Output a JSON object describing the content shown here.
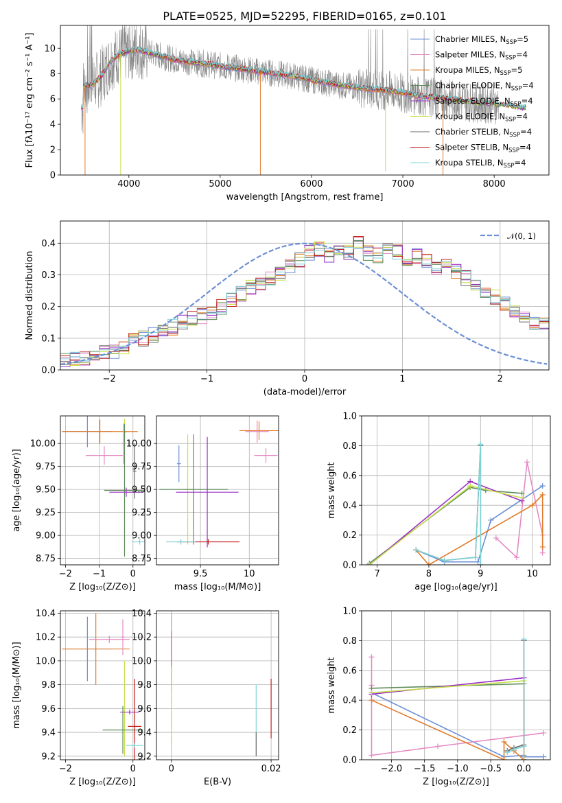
{
  "figure_title": "PLATE=0525, MJD=52295, FIBERID=0165, z=0.101",
  "colors": {
    "Chabrier MILES": "#6b8fd6",
    "Salpeter MILES": "#e48ac3",
    "Kroupa MILES": "#e07b2a",
    "Chabrier ELODIE": "#5e8c5a",
    "Salpeter ELODIE": "#9b30c4",
    "Kroupa ELODIE": "#c8de4a",
    "Chabrier STELIB": "#6a6a6a",
    "Salpeter STELIB": "#c21f1f",
    "Kroupa STELIB": "#7fd3d6",
    "gaussian": "#6b8fd6",
    "data": "#888888"
  },
  "chart_data": [
    {
      "type": "line",
      "title": "PLATE=0525, MJD=52295, FIBERID=0165, z=0.101",
      "xlabel": "wavelength [Angstrom, rest frame]",
      "ylabel": "Flux [fλ10⁻¹⁷ erg cm⁻² s⁻¹ A⁻¹]",
      "xlim": [
        3250,
        8600
      ],
      "ylim": [
        0,
        11.8
      ],
      "xticks": [
        4000,
        5000,
        6000,
        7000,
        8000
      ],
      "yticks": [
        0,
        2,
        4,
        6,
        8,
        10
      ],
      "grid": false,
      "legend_position": "top-right",
      "legend": [
        "Chabrier MILES, N_SSP=5",
        "Salpeter MILES, N_SSP=4",
        "Kroupa MILES, N_SSP=5",
        "Chabrier ELODIE, N_SSP=4",
        "Salpeter ELODIE, N_SSP=4",
        "Kroupa ELODIE, N_SSP=4",
        "Chabrier STELIB, N_SSP=4",
        "Salpeter STELIB, N_SSP=4",
        "Kroupa STELIB, N_SSP=4"
      ],
      "model_continuum": {
        "x": [
          3500,
          3600,
          3700,
          3800,
          3900,
          4000,
          4100,
          4200,
          4300,
          4400,
          4500,
          4700,
          5000,
          5200,
          5500,
          5800,
          6000,
          6300,
          6500,
          6800,
          7000,
          7200,
          7500,
          7800,
          8000,
          8300
        ],
        "y": [
          7.0,
          7.1,
          7.8,
          9.0,
          9.5,
          9.8,
          9.9,
          9.7,
          9.5,
          9.3,
          9.1,
          8.9,
          8.6,
          8.4,
          8.1,
          7.8,
          7.5,
          7.1,
          6.9,
          6.7,
          6.5,
          6.2,
          6.0,
          5.7,
          5.6,
          5.3
        ]
      }
    },
    {
      "type": "step",
      "xlabel": "(data-model)/error",
      "ylabel": "Normed distribution",
      "xlim": [
        -2.5,
        2.5
      ],
      "ylim": [
        0,
        0.47
      ],
      "xticks": [
        -2,
        -1,
        0,
        1,
        2
      ],
      "yticks": [
        0.0,
        0.1,
        0.2,
        0.3,
        0.4
      ],
      "grid": true,
      "legend_position": "top-right",
      "legend": [
        "𝒩(0, 1)"
      ],
      "bin_width": 0.1,
      "bin_start": -2.5,
      "histogram_mean": [
        0.03,
        0.035,
        0.04,
        0.05,
        0.055,
        0.06,
        0.075,
        0.09,
        0.1,
        0.11,
        0.12,
        0.135,
        0.15,
        0.16,
        0.17,
        0.18,
        0.2,
        0.22,
        0.24,
        0.26,
        0.27,
        0.29,
        0.3,
        0.33,
        0.35,
        0.37,
        0.38,
        0.36,
        0.38,
        0.37,
        0.4,
        0.37,
        0.36,
        0.38,
        0.37,
        0.35,
        0.36,
        0.34,
        0.32,
        0.33,
        0.31,
        0.29,
        0.27,
        0.25,
        0.23,
        0.21,
        0.19,
        0.16,
        0.15,
        0.14,
        0.12,
        0.11,
        0.1,
        0.09,
        0.08,
        0.07,
        0.06,
        0.05,
        0.045,
        0.04,
        0.04
      ]
    },
    {
      "type": "errorbar",
      "xlabel": "Z [log₁₀(Z/Z⊙)]",
      "ylabel": "age  [log₁₀(age/yr)]",
      "xlim": [
        -2.15,
        0.35
      ],
      "ylim": [
        8.68,
        10.3
      ],
      "xticks": [
        -2,
        -1,
        0
      ],
      "yticks": [
        8.75,
        9.0,
        9.25,
        9.5,
        9.75,
        10.0
      ],
      "grid": true,
      "points": [
        {
          "m": "Chabrier MILES",
          "x": -1.35,
          "y": 10.13,
          "xerr": 0.75,
          "yerr": 0.17
        },
        {
          "m": "Kroupa MILES",
          "x": -0.98,
          "y": 10.13,
          "xerr": 1.12,
          "yerr": 0.13
        },
        {
          "m": "Salpeter MILES",
          "x": -0.85,
          "y": 9.87,
          "xerr": 0.55,
          "yerr": 0.1
        },
        {
          "m": "Salpeter MILES",
          "x": -0.28,
          "y": 10.0,
          "xerr": 0.05,
          "yerr": 0.22
        },
        {
          "m": "Kroupa ELODIE",
          "x": -0.25,
          "y": 10.12,
          "xerr": 0.05,
          "yerr": 0.15
        },
        {
          "m": "Chabrier ELODIE",
          "x": -0.25,
          "y": 9.49,
          "xerr": 0.6,
          "yerr": 0.72
        },
        {
          "m": "Salpeter ELODIE",
          "x": -0.2,
          "y": 9.47,
          "xerr": 0.5,
          "yerr": 0.05
        },
        {
          "m": "Chabrier STELIB",
          "x": 0.05,
          "y": 9.7,
          "xerr": 0.05,
          "yerr": 0.3
        },
        {
          "m": "Kroupa STELIB",
          "x": 0.2,
          "y": 8.93,
          "xerr": 0.22,
          "yerr": 0.03
        }
      ]
    },
    {
      "type": "errorbar",
      "xlabel": "mass [log₁₀(M/M⊙)]",
      "ylabel": "",
      "xlim": [
        9.05,
        10.3
      ],
      "ylim": [
        8.68,
        10.3
      ],
      "xticks": [
        9.5,
        10.0
      ],
      "yticks": [
        8.75,
        9.0,
        9.25,
        9.5,
        9.75,
        10.0
      ],
      "grid": true,
      "points": [
        {
          "m": "Salpeter MILES",
          "x": 10.17,
          "y": 9.87,
          "xerr": 0.12,
          "yerr": 0.08
        },
        {
          "m": "Kroupa MILES",
          "x": 10.1,
          "y": 10.14,
          "xerr": 0.2,
          "yerr": 0.1
        },
        {
          "m": "Salpeter MILES",
          "x": 10.08,
          "y": 10.13,
          "xerr": 0.12,
          "yerr": 0.12
        },
        {
          "m": "Chabrier MILES",
          "x": 9.28,
          "y": 9.78,
          "xerr": 0.02,
          "yerr": 0.2
        },
        {
          "m": "Kroupa ELODIE",
          "x": 9.37,
          "y": 9.5,
          "xerr": 0.05,
          "yerr": 0.6
        },
        {
          "m": "Chabrier ELODIE",
          "x": 9.43,
          "y": 9.5,
          "xerr": 0.35,
          "yerr": 0.6
        },
        {
          "m": "Salpeter ELODIE",
          "x": 9.57,
          "y": 9.47,
          "xerr": 0.32,
          "yerr": 0.6
        },
        {
          "m": "Salpeter STELIB",
          "x": 9.58,
          "y": 8.93,
          "xerr": 0.32,
          "yerr": 0.03
        },
        {
          "m": "Kroupa STELIB",
          "x": 9.3,
          "y": 8.93,
          "xerr": 0.15,
          "yerr": 0.03
        }
      ]
    },
    {
      "type": "line",
      "xlabel": "age  [log₁₀(age/yr)]",
      "ylabel": "mass weight",
      "xlim": [
        6.7,
        10.35
      ],
      "ylim": [
        0,
        1.0
      ],
      "xticks": [
        7,
        8,
        9,
        10
      ],
      "yticks": [
        0.0,
        0.2,
        0.4,
        0.6,
        0.8,
        1.0
      ],
      "grid": true,
      "series": [
        {
          "m": "Chabrier MILES",
          "x": [
            7.75,
            8.3,
            8.95,
            9.2,
            10.2
          ],
          "y": [
            0.1,
            0.02,
            0.02,
            0.3,
            0.53
          ]
        },
        {
          "m": "Salpeter MILES",
          "x": [
            9.3,
            9.7,
            9.9,
            10.2,
            10.2
          ],
          "y": [
            0.18,
            0.05,
            0.69,
            0.2,
            0.08
          ]
        },
        {
          "m": "Kroupa MILES",
          "x": [
            7.75,
            8.0,
            10.0,
            10.2,
            10.2
          ],
          "y": [
            0.1,
            0.0,
            0.4,
            0.47,
            0.12
          ]
        },
        {
          "m": "Chabrier ELODIE",
          "x": [
            6.85,
            8.8,
            9.1,
            9.8
          ],
          "y": [
            0.01,
            0.52,
            0.5,
            0.48
          ]
        },
        {
          "m": "Salpeter ELODIE",
          "x": [
            6.85,
            8.8,
            9.8
          ],
          "y": [
            0.0,
            0.56,
            0.43
          ]
        },
        {
          "m": "Kroupa ELODIE",
          "x": [
            6.85,
            8.8,
            9.8
          ],
          "y": [
            0.0,
            0.53,
            0.45
          ]
        },
        {
          "m": "Chabrier STELIB",
          "x": [
            7.75,
            8.3,
            8.9,
            9.0,
            9.0
          ],
          "y": [
            0.1,
            0.03,
            0.05,
            0.8,
            0.0
          ]
        },
        {
          "m": "Kroupa STELIB",
          "x": [
            7.75,
            8.3,
            8.9,
            9.0,
            9.0
          ],
          "y": [
            0.1,
            0.03,
            0.05,
            0.81,
            0.0
          ]
        }
      ]
    },
    {
      "type": "errorbar",
      "xlabel": "Z [log₁₀(Z/Z⊙)]",
      "ylabel": "mass [log₁₀(M/M⊙)]",
      "xlim": [
        -2.15,
        0.35
      ],
      "ylim": [
        9.17,
        10.42
      ],
      "xticks": [
        -2,
        0
      ],
      "yticks": [
        9.2,
        9.4,
        9.6,
        9.8,
        10.0,
        10.2,
        10.4
      ],
      "grid": true,
      "points": [
        {
          "m": "Chabrier MILES",
          "x": -1.35,
          "y": 10.1,
          "xerr": 0.75,
          "yerr": 0.27
        },
        {
          "m": "Kroupa MILES",
          "x": -1.1,
          "y": 10.1,
          "xerr": 1.0,
          "yerr": 0.3
        },
        {
          "m": "Salpeter MILES",
          "x": -0.7,
          "y": 10.18,
          "xerr": 0.6,
          "yerr": 0.03
        },
        {
          "m": "Salpeter MILES",
          "x": -0.3,
          "y": 10.2,
          "xerr": 0.05,
          "yerr": 0.15
        },
        {
          "m": "Kroupa ELODIE",
          "x": -0.25,
          "y": 9.6,
          "xerr": 0.05,
          "yerr": 0.4
        },
        {
          "m": "Chabrier ELODIE",
          "x": -0.3,
          "y": 9.42,
          "xerr": 0.6,
          "yerr": 0.2
        },
        {
          "m": "Salpeter ELODIE",
          "x": -0.1,
          "y": 9.57,
          "xerr": 0.28,
          "yerr": 0.02
        },
        {
          "m": "Salpeter STELIB",
          "x": 0.05,
          "y": 9.45,
          "xerr": 0.2,
          "yerr": 0.4
        },
        {
          "m": "Kroupa STELIB",
          "x": 0.05,
          "y": 9.29,
          "xerr": 0.25,
          "yerr": 0.02
        }
      ]
    },
    {
      "type": "errorbar",
      "xlabel": "E(B-V)",
      "ylabel": "",
      "xlim": [
        -0.003,
        0.0215
      ],
      "ylim": [
        9.17,
        10.42
      ],
      "xticks": [
        0.0,
        0.02
      ],
      "yticks": [
        9.2,
        9.4,
        9.6,
        9.8,
        10.0,
        10.2,
        10.4
      ],
      "grid": true,
      "points": [
        {
          "m": "Salpeter MILES",
          "x": 0.0,
          "y": 10.1,
          "xerr": 0,
          "yerr": 0.3
        },
        {
          "m": "Kroupa MILES",
          "x": 0.0,
          "y": 10.0,
          "xerr": 0,
          "yerr": 0.25
        },
        {
          "m": "Kroupa ELODIE",
          "x": 0.0,
          "y": 9.6,
          "xerr": 0,
          "yerr": 0.35
        },
        {
          "m": "Kroupa STELIB",
          "x": 0.017,
          "y": 9.5,
          "xerr": 0,
          "yerr": 0.3
        },
        {
          "m": "Chabrier STELIB",
          "x": 0.017,
          "y": 9.3,
          "xerr": 0,
          "yerr": 0.1
        },
        {
          "m": "Salpeter STELIB",
          "x": 0.02,
          "y": 9.6,
          "xerr": 0,
          "yerr": 0.25
        }
      ]
    },
    {
      "type": "line",
      "xlabel": "Z [log₁₀(Z/Z⊙)]",
      "ylabel": "mass weight",
      "xlim": [
        -2.45,
        0.4
      ],
      "ylim": [
        0,
        1.0
      ],
      "xticks": [
        -2.0,
        -1.5,
        -1.0,
        -0.5,
        0.0
      ],
      "xtick_labels": [
        "−2.0",
        "−1.5",
        "−1.0",
        "−0.5",
        "0.0"
      ],
      "yticks": [
        0.0,
        0.2,
        0.4,
        0.6,
        0.8,
        1.0
      ],
      "grid": true,
      "series": [
        {
          "m": "Chabrier MILES",
          "x": [
            -2.3,
            -0.3,
            0.0,
            0.0,
            0.3
          ],
          "y": [
            0.45,
            0.02,
            0.03,
            0.02,
            0.02
          ]
        },
        {
          "m": "Salpeter MILES",
          "x": [
            -2.3,
            -2.3,
            -2.3,
            -1.3,
            0.3
          ],
          "y": [
            0.69,
            0.5,
            0.03,
            0.09,
            0.18
          ]
        },
        {
          "m": "Kroupa MILES",
          "x": [
            -2.3,
            -0.3,
            -0.3,
            -0.15,
            0.0
          ],
          "y": [
            0.4,
            0.0,
            0.12,
            0.06,
            0.0
          ]
        },
        {
          "m": "Chabrier ELODIE",
          "x": [
            -2.3,
            0.0,
            0.0
          ],
          "y": [
            0.48,
            0.51,
            0.0
          ]
        },
        {
          "m": "Salpeter ELODIE",
          "x": [
            -2.3,
            0.0,
            0.0
          ],
          "y": [
            0.44,
            0.55,
            0.0
          ]
        },
        {
          "m": "Kroupa ELODIE",
          "x": [
            -2.3,
            0.0,
            0.0
          ],
          "y": [
            0.45,
            0.53,
            0.0
          ]
        },
        {
          "m": "Chabrier STELIB",
          "x": [
            -0.25,
            -0.15,
            0.0,
            0.0
          ],
          "y": [
            0.06,
            0.08,
            0.1,
            0.8
          ]
        },
        {
          "m": "Kroupa STELIB",
          "x": [
            -0.25,
            -0.15,
            0.0,
            0.0
          ],
          "y": [
            0.05,
            0.07,
            0.09,
            0.81
          ]
        }
      ]
    }
  ]
}
